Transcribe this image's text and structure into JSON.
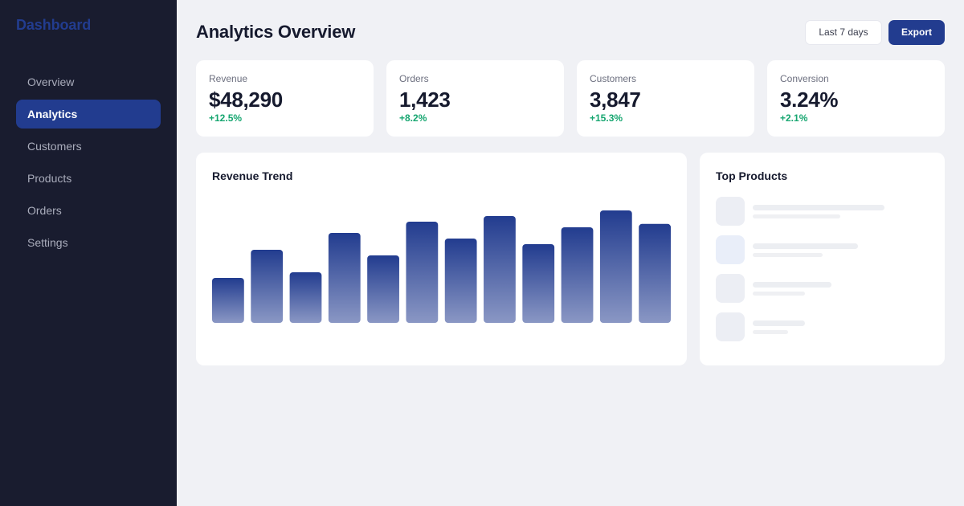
{
  "sidebar": {
    "brand": "Dashboard",
    "items": [
      {
        "label": "Overview",
        "active": false
      },
      {
        "label": "Analytics",
        "active": true
      },
      {
        "label": "Customers",
        "active": false
      },
      {
        "label": "Products",
        "active": false
      },
      {
        "label": "Orders",
        "active": false
      },
      {
        "label": "Settings",
        "active": false
      }
    ]
  },
  "header": {
    "title": "Analytics Overview",
    "range_label": "Last 7 days",
    "export_label": "Export"
  },
  "stats": [
    {
      "label": "Revenue",
      "value": "$48,290",
      "delta": "+12.5%"
    },
    {
      "label": "Orders",
      "value": "1,423",
      "delta": "+8.2%"
    },
    {
      "label": "Customers",
      "value": "3,847",
      "delta": "+15.3%"
    },
    {
      "label": "Conversion",
      "value": "3.24%",
      "delta": "+2.1%"
    }
  ],
  "trend": {
    "title": "Revenue Trend"
  },
  "top_products": {
    "title": "Top Products",
    "item_count": 4
  },
  "colors": {
    "accent": "#223c8f",
    "positive": "#16a670",
    "sidebar_bg": "#191c2f",
    "page_bg": "#f0f1f5"
  },
  "chart_data": {
    "type": "bar",
    "values": [
      40,
      65,
      45,
      80,
      60,
      90,
      75,
      95,
      70,
      85,
      100,
      88
    ],
    "ylim": [
      0,
      100
    ],
    "grid": false
  }
}
